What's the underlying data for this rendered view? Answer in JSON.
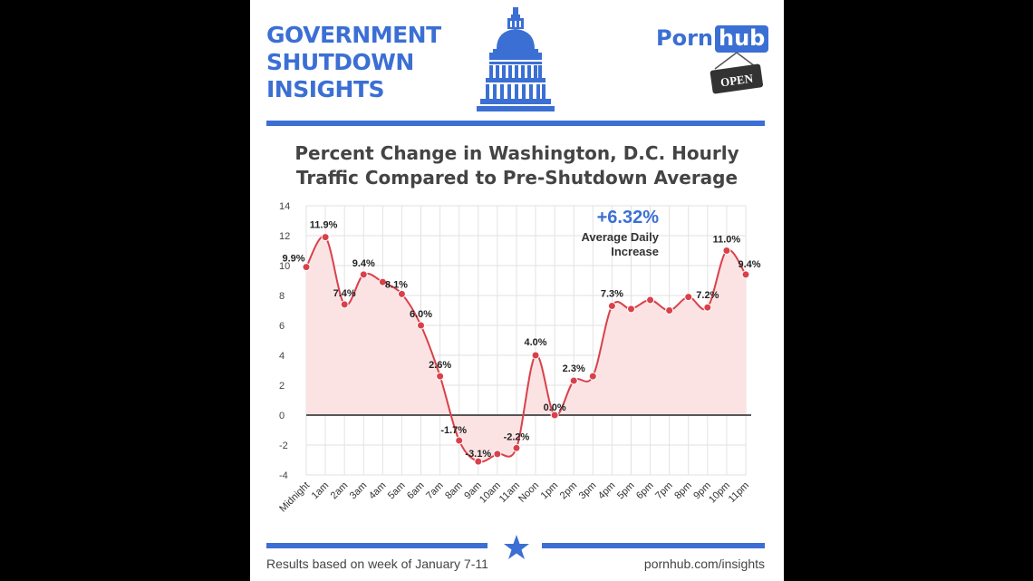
{
  "header": {
    "title_lines": [
      "GOVERNMENT",
      "SHUTDOWN",
      "INSIGHTS"
    ],
    "brand_a": "Porn",
    "brand_b": "hub",
    "sign_text": "OPEN"
  },
  "colors": {
    "accent": "#3b6fd4",
    "line": "#d9414a",
    "fill": "#fbe3e4"
  },
  "icons": [
    "capitol-dome-icon",
    "open-sign-icon",
    "star-icon"
  ],
  "chart_data": {
    "type": "line",
    "title_lines": [
      "Percent Change in Washington, D.C. Hourly",
      "Traffic Compared to Pre-Shutdown Average"
    ],
    "xlabel": "",
    "ylabel": "",
    "ylim": [
      -4,
      14
    ],
    "yticks": [
      -4,
      -2,
      0,
      2,
      4,
      6,
      8,
      10,
      12,
      14
    ],
    "grid": true,
    "categories": [
      "Midnight",
      "1am",
      "2am",
      "3am",
      "4am",
      "5am",
      "6am",
      "7am",
      "8am",
      "9am",
      "10am",
      "11am",
      "Noon",
      "1pm",
      "2pm",
      "3pm",
      "4pm",
      "5pm",
      "6pm",
      "7pm",
      "8pm",
      "9pm",
      "10pm",
      "11pm"
    ],
    "values": [
      9.9,
      11.9,
      7.4,
      9.4,
      8.9,
      8.1,
      6.0,
      2.6,
      -1.7,
      -3.1,
      -2.6,
      -2.2,
      4.0,
      0.0,
      2.3,
      2.6,
      7.3,
      7.1,
      7.7,
      7.0,
      7.9,
      7.2,
      11.0,
      9.4
    ],
    "point_labels": [
      "9.9%",
      "11.9%",
      "7.4%",
      "9.4%",
      "",
      "8.1%",
      "6.0%",
      "2.6%",
      "-1.7%",
      "-3.1%",
      "",
      "-2.2%",
      "4.0%",
      "0.0%",
      "2.3%",
      "",
      "7.3%",
      "",
      "",
      "",
      "",
      "7.2%",
      "11.0%",
      "9.4%"
    ],
    "annotation": {
      "value": "+6.32%",
      "line1": "Average Daily",
      "line2": "Increase"
    }
  },
  "footer": {
    "note": "Results based on week of January 7-11",
    "site": "pornhub.com/insights"
  }
}
